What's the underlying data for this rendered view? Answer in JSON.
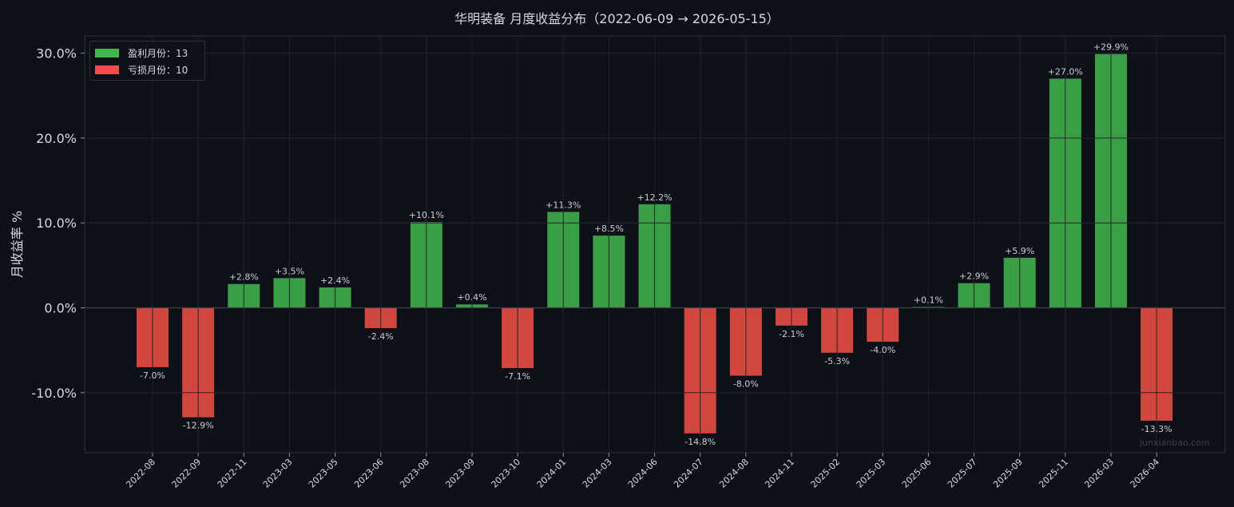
{
  "title": "华明装备 月度收益分布（2022-06-09 → 2026-05-15）",
  "watermark": "junxianbao.com",
  "colors": {
    "background": "#0d1017",
    "positive": "#3a9e47",
    "negative": "#d1463f",
    "grid": "#262b33",
    "text": "#d5d9df",
    "label": "#c8ccd2"
  },
  "legend": {
    "placement": "top-left",
    "positive": {
      "label": "盈利月份：13",
      "color": "#45b551"
    },
    "negative": {
      "label": "亏损月份：10",
      "color": "#ef4f4a"
    }
  },
  "chart_data": {
    "type": "bar",
    "ylabel": "月收益率 %",
    "xlabel": "",
    "ylim": [
      -17,
      32
    ],
    "yticks": [
      -10,
      0,
      10,
      20,
      30
    ],
    "ytick_labels": [
      "-10.0%",
      "0.0%",
      "10.0%",
      "20.0%",
      "30.0%"
    ],
    "grid": true,
    "categories": [
      "2022-08",
      "2022-09",
      "2022-11",
      "2023-03",
      "2023-05",
      "2023-06",
      "2023-08",
      "2023-09",
      "2023-10",
      "2024-01",
      "2024-03",
      "2024-06",
      "2024-07",
      "2024-08",
      "2024-11",
      "2025-02",
      "2025-03",
      "2025-06",
      "2025-07",
      "2025-09",
      "2025-11",
      "2026-03",
      "2026-04"
    ],
    "values": [
      -7.0,
      -12.9,
      2.8,
      3.5,
      2.4,
      -2.4,
      10.1,
      0.4,
      -7.1,
      11.3,
      8.5,
      12.2,
      -14.8,
      -8.0,
      -2.1,
      -5.3,
      -4.0,
      0.1,
      2.9,
      5.9,
      27.0,
      29.9,
      -13.3
    ],
    "value_labels": [
      "-7.0%",
      "-12.9%",
      "+2.8%",
      "+3.5%",
      "+2.4%",
      "-2.4%",
      "+10.1%",
      "+0.4%",
      "-7.1%",
      "+11.3%",
      "+8.5%",
      "+12.2%",
      "-14.8%",
      "-8.0%",
      "-2.1%",
      "-5.3%",
      "-4.0%",
      "+0.1%",
      "+2.9%",
      "+5.9%",
      "+27.0%",
      "+29.9%",
      "-13.3%"
    ]
  }
}
